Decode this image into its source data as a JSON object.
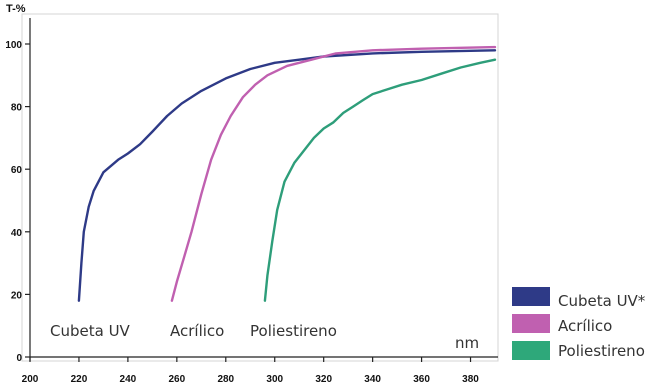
{
  "chart_data": {
    "type": "line",
    "ylabel": "T-%",
    "xlabel": "nm",
    "xlim": [
      200,
      390
    ],
    "ylim": [
      0,
      100
    ],
    "x_ticks": [
      200,
      220,
      240,
      260,
      280,
      300,
      320,
      340,
      360,
      380
    ],
    "y_ticks": [
      0,
      20,
      40,
      60,
      80,
      100
    ],
    "grid": false,
    "series": [
      {
        "name": "Cubeta UV",
        "color": "#2e3a87",
        "points": [
          [
            220,
            18
          ],
          [
            221,
            30
          ],
          [
            222,
            40
          ],
          [
            224,
            48
          ],
          [
            226,
            53
          ],
          [
            230,
            59
          ],
          [
            236,
            63
          ],
          [
            240,
            65
          ],
          [
            245,
            68
          ],
          [
            250,
            72
          ],
          [
            256,
            77
          ],
          [
            262,
            81
          ],
          [
            270,
            85
          ],
          [
            280,
            89
          ],
          [
            290,
            92
          ],
          [
            300,
            94
          ],
          [
            310,
            95
          ],
          [
            320,
            96
          ],
          [
            340,
            97
          ],
          [
            360,
            97.5
          ],
          [
            390,
            98
          ]
        ]
      },
      {
        "name": "Acrílico",
        "color": "#c060b0",
        "points": [
          [
            258,
            18
          ],
          [
            260,
            24
          ],
          [
            263,
            32
          ],
          [
            266,
            40
          ],
          [
            270,
            52
          ],
          [
            274,
            63
          ],
          [
            278,
            71
          ],
          [
            282,
            77
          ],
          [
            287,
            83
          ],
          [
            292,
            87
          ],
          [
            297,
            90
          ],
          [
            305,
            93
          ],
          [
            315,
            95
          ],
          [
            325,
            97
          ],
          [
            340,
            98
          ],
          [
            360,
            98.5
          ],
          [
            390,
            99
          ]
        ]
      },
      {
        "name": "Poliestireno",
        "color": "#2e9e7a",
        "points": [
          [
            296,
            18
          ],
          [
            297,
            26
          ],
          [
            299,
            37
          ],
          [
            301,
            47
          ],
          [
            304,
            56
          ],
          [
            308,
            62
          ],
          [
            312,
            66
          ],
          [
            316,
            70
          ],
          [
            320,
            73
          ],
          [
            324,
            75
          ],
          [
            328,
            78
          ],
          [
            332,
            80
          ],
          [
            336,
            82
          ],
          [
            340,
            84
          ],
          [
            346,
            85.5
          ],
          [
            352,
            87
          ],
          [
            360,
            88.5
          ],
          [
            368,
            90.5
          ],
          [
            376,
            92.5
          ],
          [
            384,
            94
          ],
          [
            390,
            95
          ]
        ]
      }
    ],
    "annotations": [
      "Cubeta UV",
      "Acrílico",
      "Poliestireno"
    ]
  },
  "legend": [
    {
      "label": "Cubeta UV*",
      "color": "#2e3a87"
    },
    {
      "label": "Acrílico",
      "color": "#c060b0"
    },
    {
      "label": "Poliestireno",
      "color": "#2ea87a"
    }
  ]
}
